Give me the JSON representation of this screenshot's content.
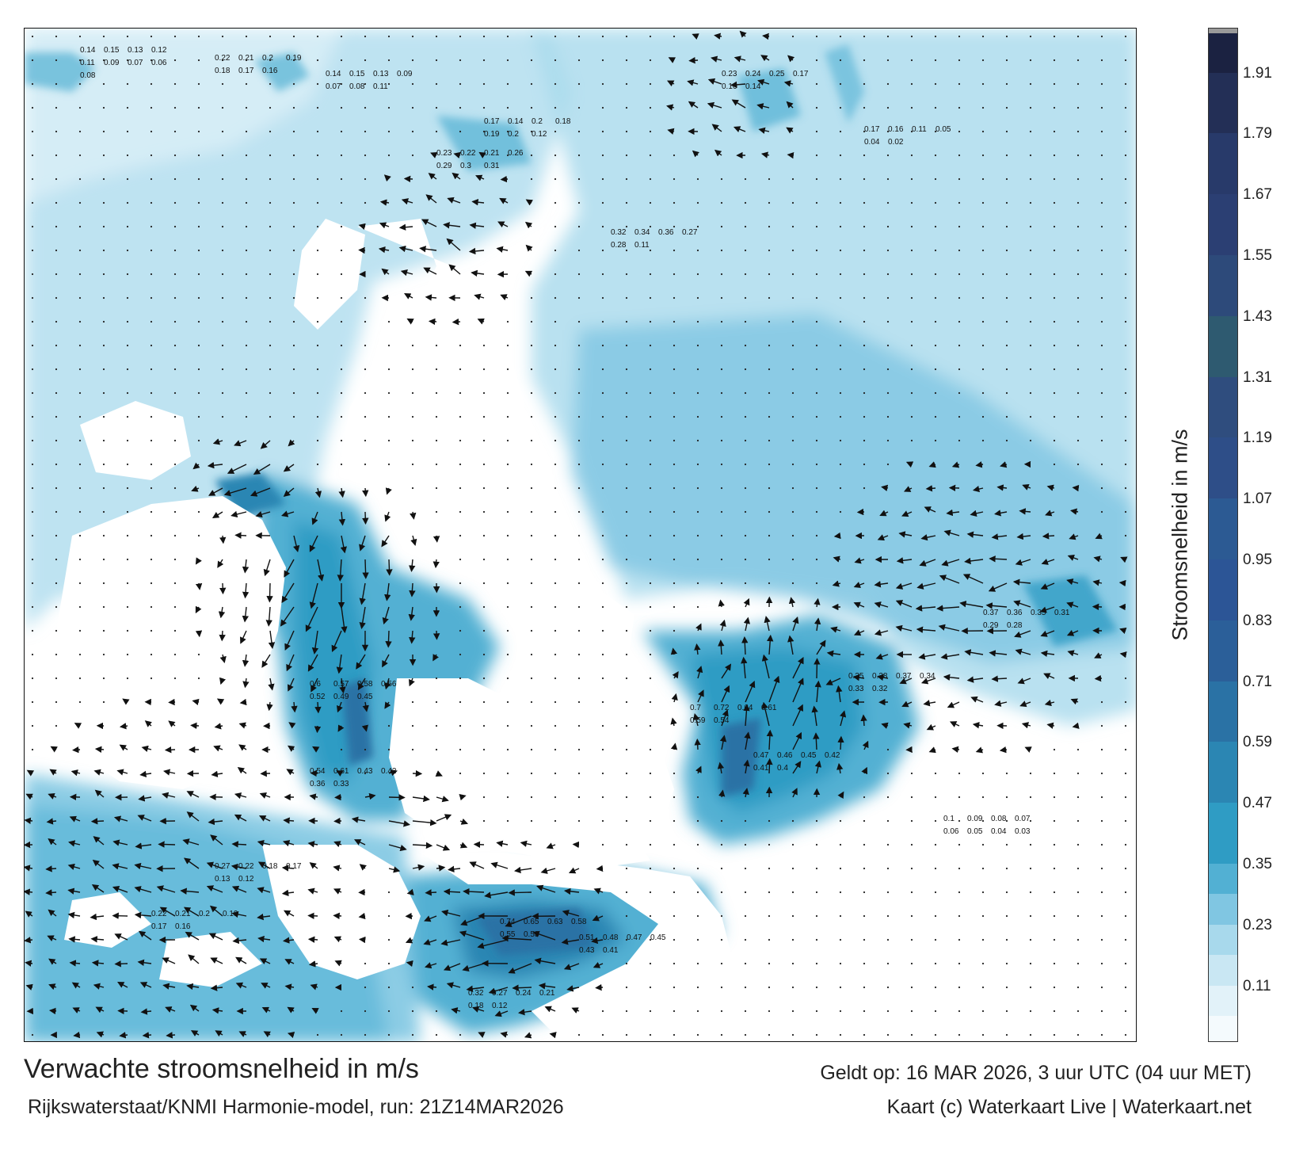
{
  "footer": {
    "title": "Verwachte stroomsnelheid in m/s",
    "model": "Rijkswaterstaat/KNMI Harmonie-model, run: 21Z14MAR2026",
    "valid": "Geldt op: 16 MAR 2026, 3 uur UTC (04 uur MET)",
    "credit": "Kaart (c) Waterkaart Live | Waterkaart.net"
  },
  "colorbar": {
    "label": "Stroomsnelheid in m/s",
    "ticks": [
      "0.11",
      "0.23",
      "0.35",
      "0.47",
      "0.59",
      "0.71",
      "0.83",
      "0.95",
      "1.07",
      "1.19",
      "1.31",
      "1.43",
      "1.55",
      "1.67",
      "1.79",
      "1.91"
    ],
    "levels": [
      {
        "min": 0.0,
        "color": "#f4fafd"
      },
      {
        "min": 0.05,
        "color": "#e2f2f9"
      },
      {
        "min": 0.11,
        "color": "#c9e7f3"
      },
      {
        "min": 0.17,
        "color": "#a8d9ec"
      },
      {
        "min": 0.23,
        "color": "#80c6e2"
      },
      {
        "min": 0.29,
        "color": "#52b0d3"
      },
      {
        "min": 0.35,
        "color": "#2f9cc4"
      },
      {
        "min": 0.47,
        "color": "#2b86b3"
      },
      {
        "min": 0.59,
        "color": "#2a72a5"
      },
      {
        "min": 0.71,
        "color": "#2b5f99"
      },
      {
        "min": 0.83,
        "color": "#2c5596"
      },
      {
        "min": 0.95,
        "color": "#2c5a93"
      },
      {
        "min": 1.07,
        "color": "#2e4e88"
      },
      {
        "min": 1.19,
        "color": "#2f4d7e"
      },
      {
        "min": 1.31,
        "color": "#2e5a70"
      },
      {
        "min": 1.43,
        "color": "#2d4a7a"
      },
      {
        "min": 1.55,
        "color": "#2b3f73"
      },
      {
        "min": 1.67,
        "color": "#283a6a"
      },
      {
        "min": 1.79,
        "color": "#232f56"
      },
      {
        "min": 1.91,
        "color": "#1b2241"
      }
    ],
    "max": 2.0
  },
  "speed_labels": [
    {
      "id": "vlieland",
      "items": [
        "0.14",
        "0.15",
        "0.13",
        "0.12",
        "0.11",
        "0.09",
        "0.07",
        "0.06",
        "0.08"
      ]
    },
    {
      "id": "texel-inlet",
      "items": [
        "0.22",
        "0.21",
        "0.2",
        "0.19",
        "0.18",
        "0.17",
        "0.16"
      ]
    },
    {
      "id": "wadden-north",
      "items": [
        "0.14",
        "0.15",
        "0.13",
        "0.09",
        "0.07",
        "0.08",
        "0.11"
      ]
    },
    {
      "id": "ameland",
      "items": [
        "0.17",
        "0.14",
        "0.2",
        "0.18",
        "0.19",
        "0.2",
        "0.12"
      ]
    },
    {
      "id": "schiermonnikoog",
      "items": [
        "0.23",
        "0.24",
        "0.25",
        "0.17",
        "0.16",
        "0.14"
      ]
    },
    {
      "id": "ems",
      "items": [
        "0.17",
        "0.16",
        "0.11",
        "0.05",
        "0.04",
        "0.02"
      ]
    },
    {
      "id": "wadden-central",
      "items": [
        "0.23",
        "0.22",
        "0.21",
        "0.26",
        "0.29",
        "0.3",
        "0.31"
      ]
    },
    {
      "id": "frisian-coast",
      "items": [
        "0.32",
        "0.34",
        "0.36",
        "0.27",
        "0.28",
        "0.11"
      ]
    },
    {
      "id": "markermeer",
      "items": [
        "0.6",
        "0.57",
        "0.58",
        "0.56",
        "0.52",
        "0.49",
        "0.45"
      ]
    },
    {
      "id": "noordzeekanaal",
      "items": [
        "0.54",
        "0.61",
        "0.43",
        "0.42",
        "0.36",
        "0.33"
      ]
    },
    {
      "id": "ijmuiden",
      "items": [
        "0.27",
        "0.22",
        "0.18",
        "0.17",
        "0.13",
        "0.12"
      ]
    },
    {
      "id": "ijsselmeer",
      "items": [
        "0.7",
        "0.72",
        "0.64",
        "0.61",
        "0.59",
        "0.54"
      ]
    },
    {
      "id": "eastern-channel",
      "items": [
        "0.47",
        "0.46",
        "0.45",
        "0.42",
        "0.41",
        "0.4"
      ]
    },
    {
      "id": "river-east",
      "items": [
        "0.35",
        "0.38",
        "0.37",
        "0.34",
        "0.33",
        "0.32"
      ]
    },
    {
      "id": "ems-dollard",
      "items": [
        "0.37",
        "0.36",
        "0.35",
        "0.31",
        "0.29",
        "0.28"
      ]
    },
    {
      "id": "zeeland",
      "items": [
        "0.74",
        "0.65",
        "0.63",
        "0.58",
        "0.55",
        "0.53"
      ]
    },
    {
      "id": "westerschelde",
      "items": [
        "0.51",
        "0.48",
        "0.47",
        "0.45",
        "0.43",
        "0.41"
      ]
    },
    {
      "id": "south-border",
      "items": [
        "0.32",
        "0.27",
        "0.24",
        "0.21",
        "0.18",
        "0.12"
      ]
    },
    {
      "id": "southwest",
      "items": [
        "0.22",
        "0.21",
        "0.2",
        "0.19",
        "0.17",
        "0.16"
      ]
    },
    {
      "id": "open-sea",
      "items": [
        "0.1",
        "0.09",
        "0.08",
        "0.07",
        "0.06",
        "0.05",
        "0.04",
        "0.03"
      ]
    }
  ]
}
